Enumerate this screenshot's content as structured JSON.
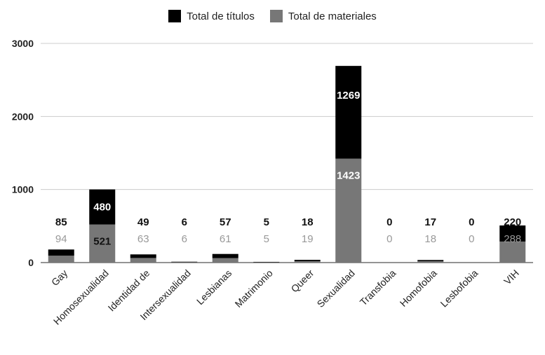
{
  "chart_data": {
    "type": "bar",
    "stacked": true,
    "categories": [
      "Gay",
      "Homosexualidad",
      "Identidad de",
      "Intersexualidad",
      "Lesbianas",
      "Matrimonio",
      "Queer",
      "Sexualidad",
      "Transfobia",
      "Homofobia",
      "Lesbofobia",
      "VIH"
    ],
    "series": [
      {
        "name": "Total de materiales",
        "color": "#777777",
        "values": [
          94,
          521,
          63,
          6,
          61,
          5,
          19,
          1423,
          0,
          18,
          0,
          288
        ]
      },
      {
        "name": "Total de títulos",
        "color": "#000000",
        "values": [
          85,
          480,
          49,
          6,
          57,
          5,
          18,
          1269,
          0,
          17,
          0,
          220
        ]
      }
    ],
    "y_ticks": [
      "0",
      "1000",
      "2000",
      "3000"
    ],
    "ylim": [
      0,
      3000
    ],
    "grid": true,
    "legend_position": "top",
    "title": "",
    "xlabel": "",
    "ylabel": ""
  }
}
